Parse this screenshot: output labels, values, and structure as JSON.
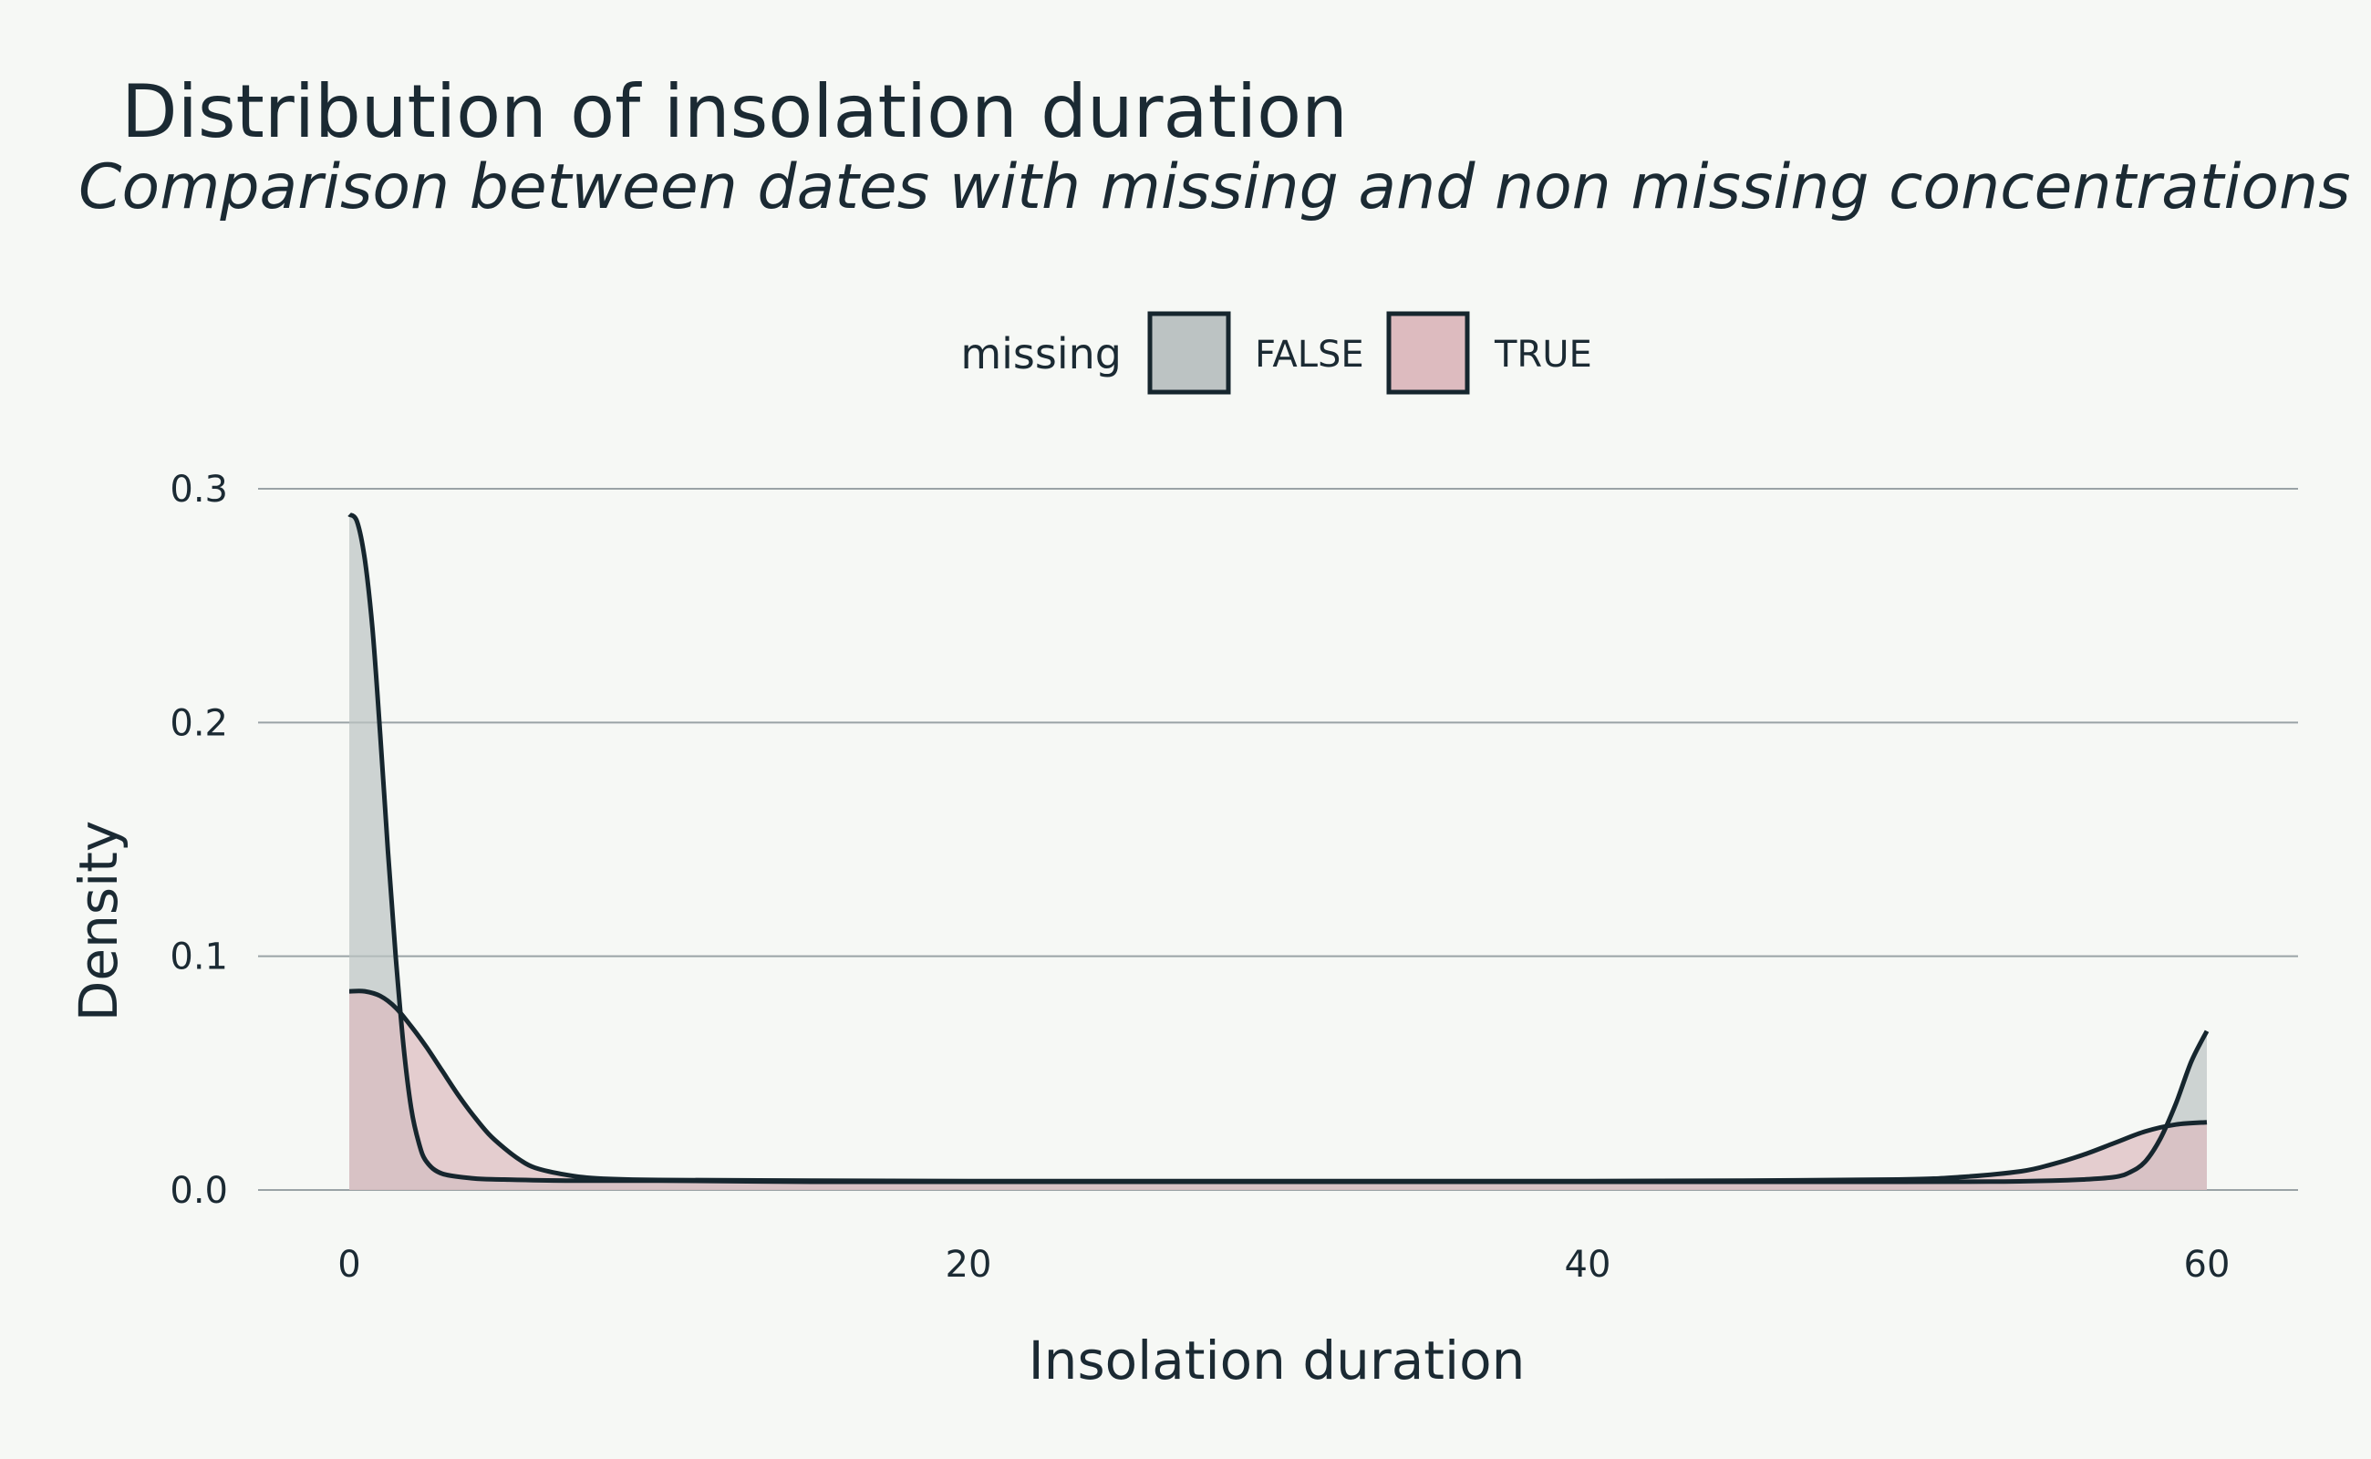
{
  "chart_data": {
    "type": "area",
    "title": "Distribution of insolation duration",
    "subtitle": "Comparison between dates with missing and non missing concentrations",
    "xlabel": "Insolation duration",
    "ylabel": "Density",
    "xlim": [
      0,
      60
    ],
    "ylim": [
      0,
      0.3
    ],
    "x_ticks": [
      "0",
      "20",
      "40",
      "60"
    ],
    "y_ticks": [
      "0.0",
      "0.1",
      "0.2",
      "0.3"
    ],
    "grid": "horizontal",
    "legend": {
      "title": "missing",
      "position": "top",
      "entries": [
        "FALSE",
        "TRUE"
      ]
    },
    "series": [
      {
        "name": "FALSE",
        "color": "#bcc3c3",
        "points": [
          [
            0,
            0.289
          ],
          [
            0.25,
            0.286
          ],
          [
            0.5,
            0.27
          ],
          [
            0.75,
            0.24
          ],
          [
            1,
            0.195
          ],
          [
            1.25,
            0.145
          ],
          [
            1.5,
            0.1
          ],
          [
            1.75,
            0.062
          ],
          [
            2,
            0.035
          ],
          [
            2.25,
            0.02
          ],
          [
            2.5,
            0.012
          ],
          [
            3,
            0.007
          ],
          [
            4,
            0.005
          ],
          [
            5,
            0.0045
          ],
          [
            7,
            0.004
          ],
          [
            10,
            0.004
          ],
          [
            15,
            0.0035
          ],
          [
            20,
            0.0035
          ],
          [
            25,
            0.0035
          ],
          [
            30,
            0.0035
          ],
          [
            35,
            0.0035
          ],
          [
            40,
            0.0035
          ],
          [
            45,
            0.0035
          ],
          [
            50,
            0.0035
          ],
          [
            53,
            0.0036
          ],
          [
            55,
            0.004
          ],
          [
            56,
            0.0045
          ],
          [
            57,
            0.0055
          ],
          [
            57.5,
            0.0075
          ],
          [
            58,
            0.012
          ],
          [
            58.5,
            0.022
          ],
          [
            59,
            0.037
          ],
          [
            59.5,
            0.055
          ],
          [
            60,
            0.068
          ]
        ]
      },
      {
        "name": "TRUE",
        "color": "#ddbbbf",
        "points": [
          [
            0,
            0.085
          ],
          [
            0.5,
            0.085
          ],
          [
            1,
            0.083
          ],
          [
            1.5,
            0.078
          ],
          [
            2,
            0.07
          ],
          [
            2.5,
            0.061
          ],
          [
            3,
            0.051
          ],
          [
            3.5,
            0.041
          ],
          [
            4,
            0.032
          ],
          [
            4.5,
            0.024
          ],
          [
            5,
            0.018
          ],
          [
            5.5,
            0.013
          ],
          [
            6,
            0.0095
          ],
          [
            7,
            0.0065
          ],
          [
            8,
            0.005
          ],
          [
            10,
            0.0043
          ],
          [
            15,
            0.004
          ],
          [
            20,
            0.0038
          ],
          [
            25,
            0.0038
          ],
          [
            30,
            0.0038
          ],
          [
            35,
            0.0038
          ],
          [
            40,
            0.0038
          ],
          [
            45,
            0.004
          ],
          [
            50,
            0.0045
          ],
          [
            52,
            0.0055
          ],
          [
            54,
            0.008
          ],
          [
            55,
            0.011
          ],
          [
            56,
            0.015
          ],
          [
            57,
            0.02
          ],
          [
            58,
            0.025
          ],
          [
            59,
            0.028
          ],
          [
            60,
            0.029
          ]
        ]
      }
    ]
  }
}
